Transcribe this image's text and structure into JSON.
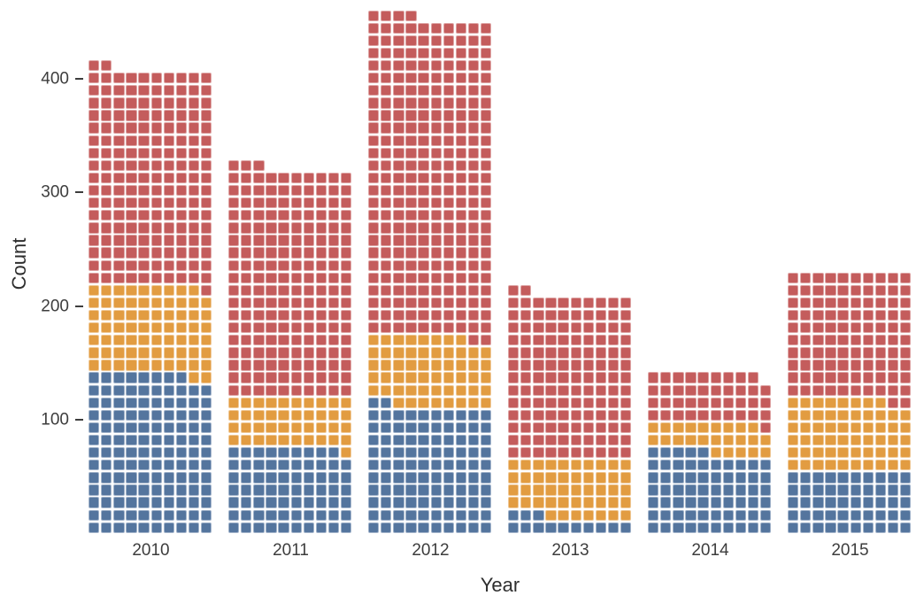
{
  "chart_data": {
    "type": "bar",
    "subtype": "waffle-stacked-bar",
    "title": "",
    "xlabel": "Year",
    "ylabel": "Count",
    "categories": [
      "2010",
      "2011",
      "2012",
      "2013",
      "2014",
      "2015"
    ],
    "series": [
      {
        "name": "blue",
        "color": "#54759e",
        "values": [
          128,
          69,
          102,
          13,
          65,
          50
        ]
      },
      {
        "name": "orange",
        "color": "#e29c41",
        "values": [
          71,
          41,
          56,
          47,
          24,
          58
        ]
      },
      {
        "name": "red",
        "color": "#c45c5c",
        "values": [
          173,
          183,
          256,
          132,
          40,
          102
        ]
      }
    ],
    "totals_squares": [
      372,
      293,
      414,
      192,
      129,
      210
    ],
    "approx_axis_totals": [
      409,
      322,
      455,
      211,
      142,
      231
    ],
    "units_per_square": 1.1,
    "columns_per_bar": 10,
    "fill_order": "bottom-up, left-to-right; blue then orange then red",
    "y_ticks": [
      100,
      200,
      300,
      400
    ],
    "ylim": [
      0,
      462
    ],
    "grid": "off",
    "legend": "none"
  }
}
